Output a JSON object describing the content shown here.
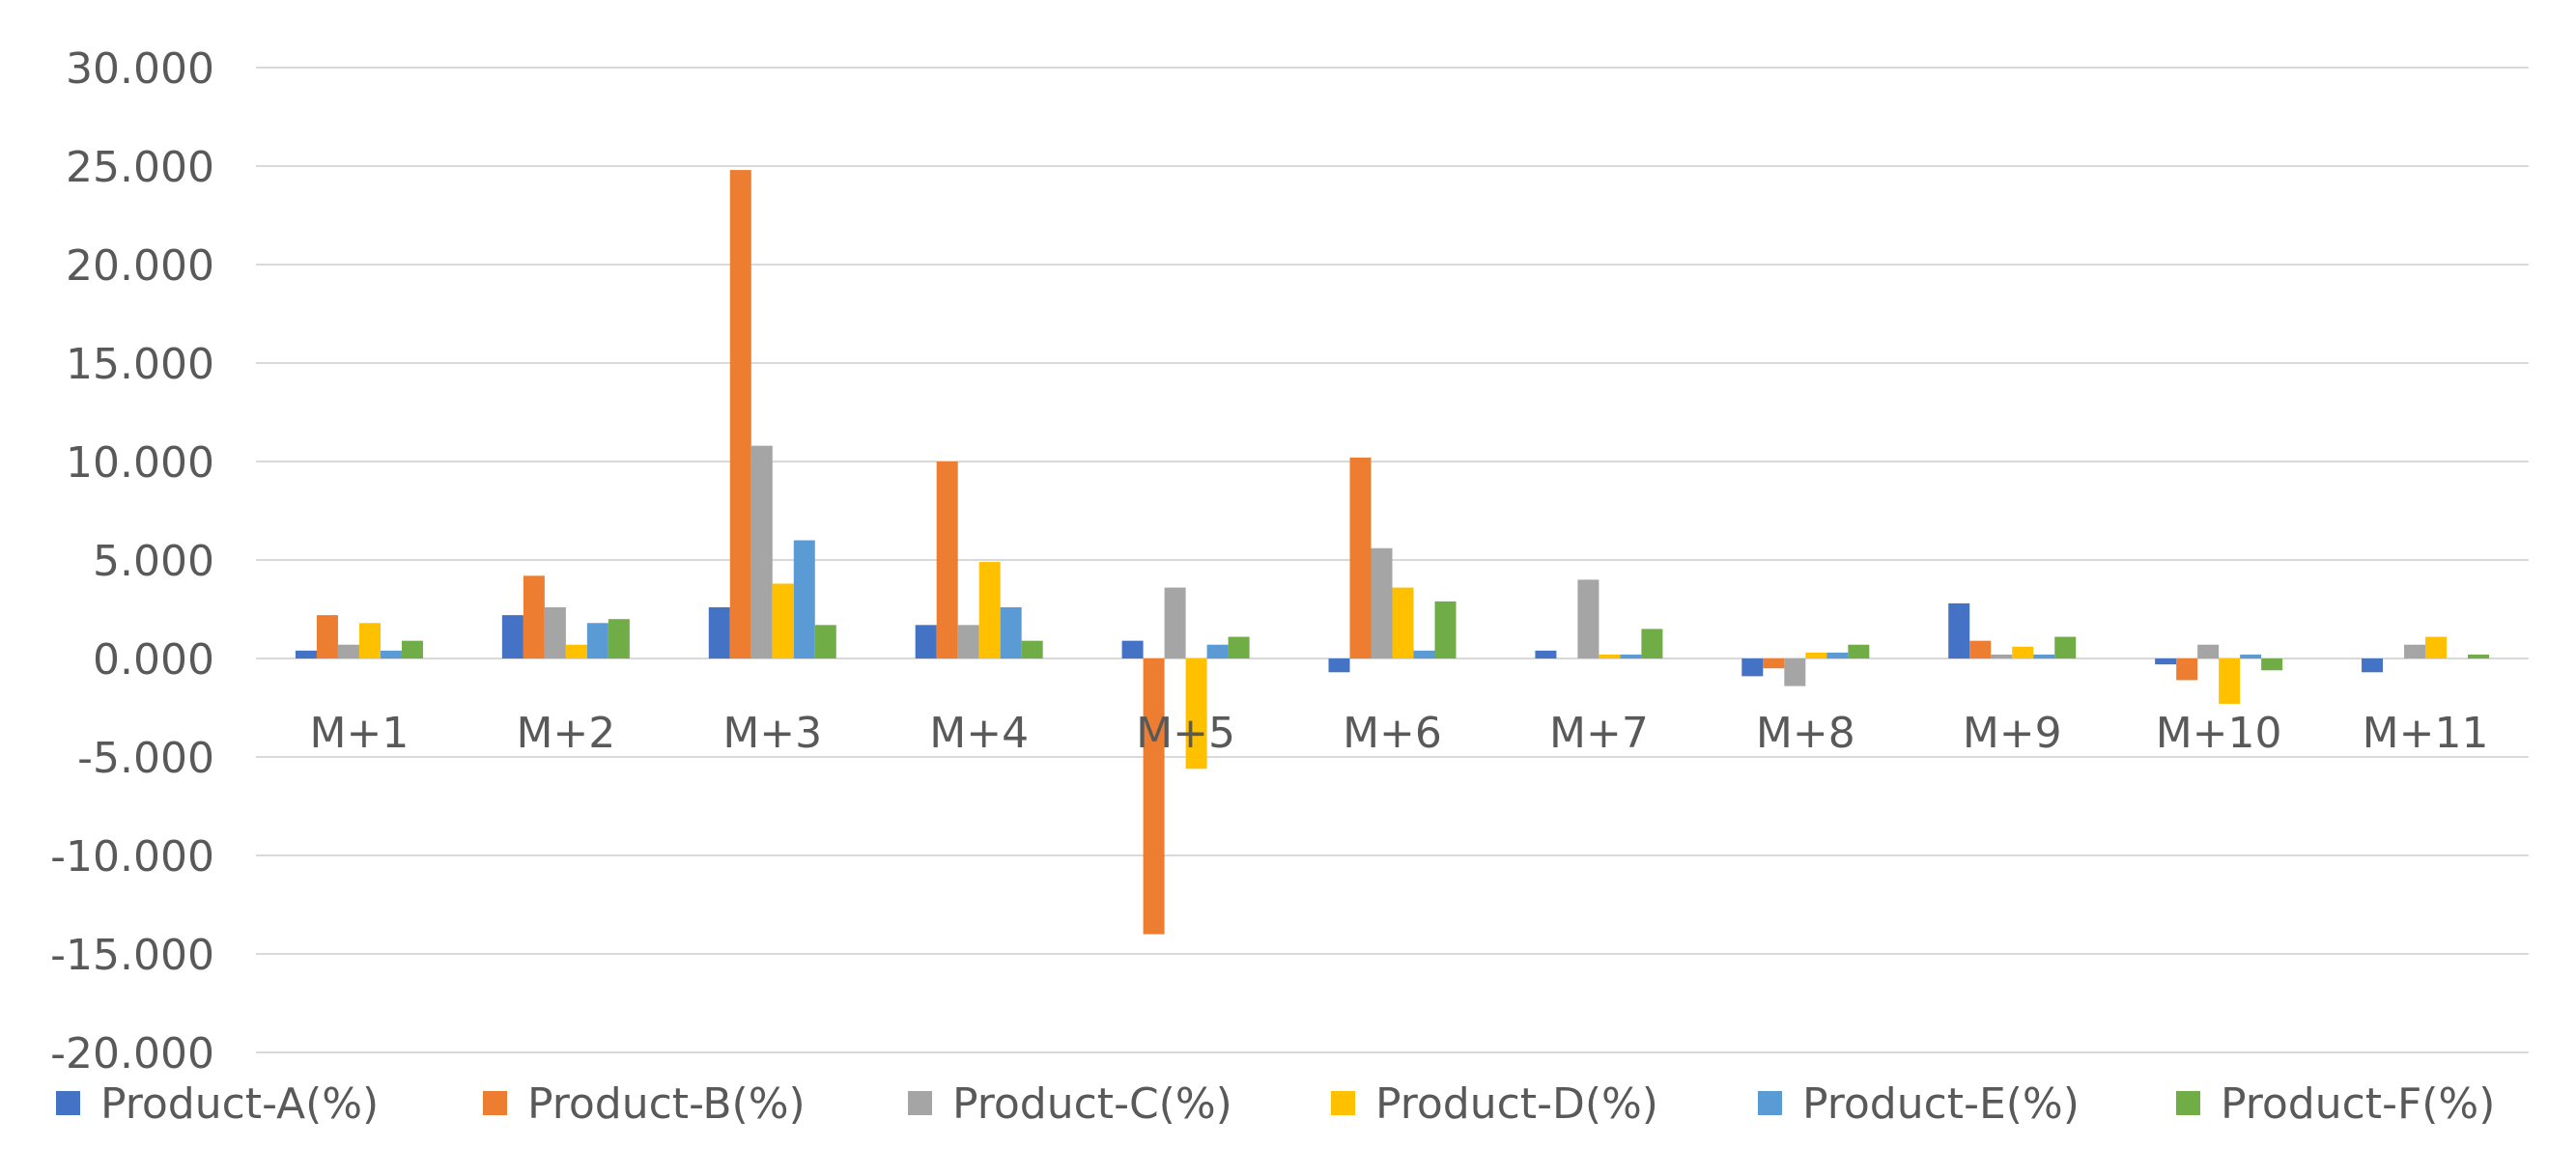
{
  "chart_data": {
    "type": "bar",
    "title": "",
    "xlabel": "",
    "ylabel": "",
    "ylim": [
      -20,
      30
    ],
    "yticks": [
      30,
      25,
      20,
      15,
      10,
      5,
      0,
      -5,
      -10,
      -15,
      -20
    ],
    "ytick_labels": [
      "30.000",
      "25.000",
      "20.000",
      "15.000",
      "10.000",
      "5.000",
      "0.000",
      "-5.000",
      "-10.000",
      "-15.000",
      "-20.000"
    ],
    "grid": true,
    "legend_position": "bottom",
    "categories": [
      "M+1",
      "M+2",
      "M+3",
      "M+4",
      "M+5",
      "M+6",
      "M+7",
      "M+8",
      "M+9",
      "M+10",
      "M+11"
    ],
    "series": [
      {
        "name": "Product-A(%)",
        "color": "#4472c4",
        "values": [
          0.4,
          2.2,
          2.6,
          1.7,
          0.9,
          -0.7,
          0.4,
          -0.9,
          2.8,
          -0.3,
          -0.7
        ]
      },
      {
        "name": "Product-B(%)",
        "color": "#ed7d31",
        "values": [
          2.2,
          4.2,
          24.8,
          10.0,
          -14.0,
          10.2,
          0.0,
          -0.5,
          0.9,
          -1.1,
          0.0
        ]
      },
      {
        "name": "Product-C(%)",
        "color": "#a5a5a5",
        "values": [
          0.7,
          2.6,
          10.8,
          1.7,
          3.6,
          5.6,
          4.0,
          -1.4,
          0.2,
          0.7,
          0.7
        ]
      },
      {
        "name": "Product-D(%)",
        "color": "#ffc000",
        "values": [
          1.8,
          0.7,
          3.8,
          4.9,
          -5.6,
          3.6,
          0.2,
          0.3,
          0.6,
          -2.3,
          1.1
        ]
      },
      {
        "name": "Product-E(%)",
        "color": "#5b9bd5",
        "values": [
          0.4,
          1.8,
          6.0,
          2.6,
          0.7,
          0.4,
          0.2,
          0.3,
          0.2,
          0.2,
          0.0
        ]
      },
      {
        "name": "Product-F(%)",
        "color": "#70ad47",
        "values": [
          0.9,
          2.0,
          1.7,
          0.9,
          1.1,
          2.9,
          1.5,
          0.7,
          1.1,
          -0.6,
          0.2
        ]
      }
    ]
  }
}
